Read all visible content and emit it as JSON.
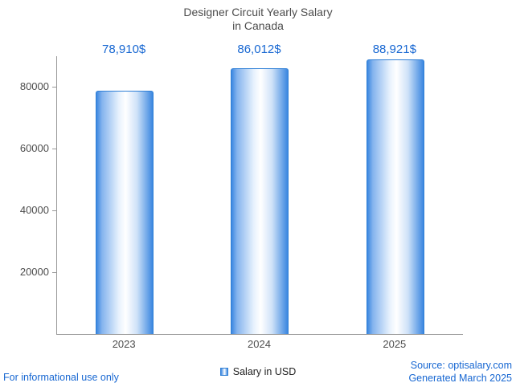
{
  "title": {
    "line1": "Designer Circuit Yearly Salary",
    "line2": "in Canada"
  },
  "chart_data": {
    "type": "bar",
    "title": "Designer Circuit Yearly Salary in Canada",
    "categories": [
      "2023",
      "2024",
      "2025"
    ],
    "values": [
      78910,
      86012,
      88921
    ],
    "value_labels": [
      "78,910$",
      "86,012$",
      "88,921$"
    ],
    "legend": [
      "Salary in USD"
    ],
    "legend_position": "bottom",
    "xlabel": "",
    "ylabel": "",
    "ylim": [
      0,
      90000
    ],
    "yticks": [
      20000,
      40000,
      60000,
      80000
    ],
    "grid": false
  },
  "footer": {
    "left": "For informational use only",
    "source": "Source: optisalary.com",
    "generated": "Generated March 2025"
  },
  "colors": {
    "accent_blue": "#1767d2",
    "text_dark": "#4d4d4d",
    "axis_gray": "#999999",
    "bar_edge": "#3b87e0",
    "bar_border": "#2f7fd6"
  }
}
